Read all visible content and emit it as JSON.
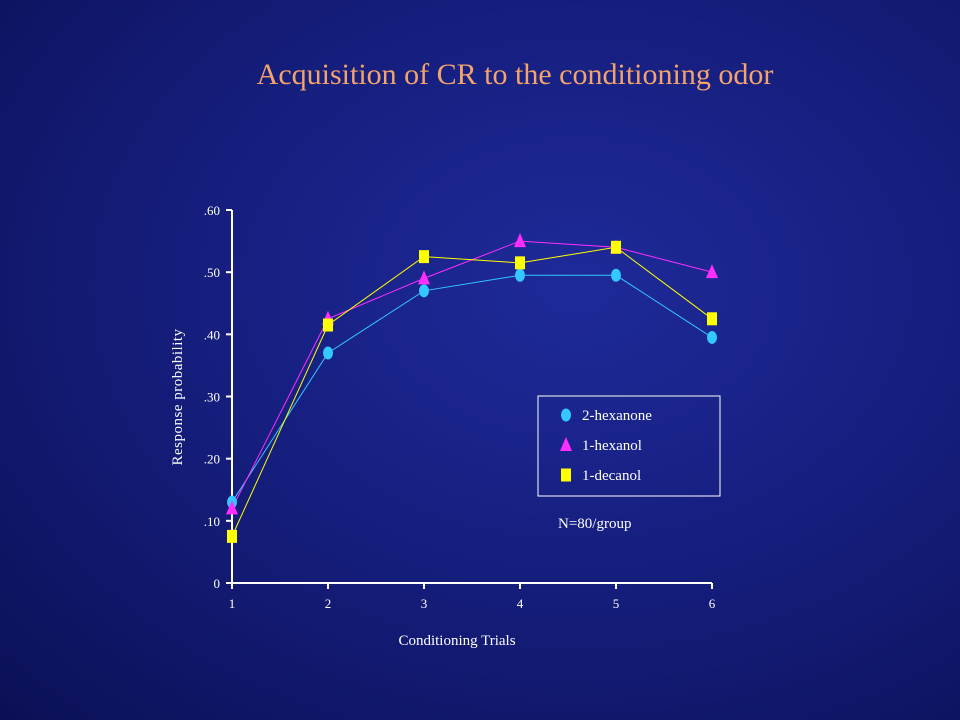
{
  "slide": {
    "title": "Acquisition of CR to the conditioning odor"
  },
  "colors": {
    "background": "#141c78",
    "title": "#f4a36a",
    "axis": "#ffffff",
    "series": [
      "#33c8ff",
      "#ff2eff",
      "#ffff00"
    ]
  },
  "chart_data": {
    "type": "line",
    "title": "Acquisition of CR to the conditioning odor",
    "xlabel": "Conditioning Trials",
    "ylabel": "Response probability",
    "x": [
      1,
      2,
      3,
      4,
      5,
      6
    ],
    "xticks": [
      "1",
      "2",
      "3",
      "4",
      "5",
      "6"
    ],
    "yticks": [
      {
        "value": 0,
        "label": "0"
      },
      {
        "value": 0.1,
        "label": ".10"
      },
      {
        "value": 0.2,
        "label": ".20"
      },
      {
        "value": 0.3,
        "label": ".30"
      },
      {
        "value": 0.4,
        "label": ".40"
      },
      {
        "value": 0.5,
        "label": ".50"
      },
      {
        "value": 0.6,
        "label": ".60"
      }
    ],
    "ylim": [
      0,
      0.6
    ],
    "grid": false,
    "legend_position": "right",
    "series": [
      {
        "name": "2-hexanone",
        "marker": "circle",
        "color": "#33c8ff",
        "values": [
          0.13,
          0.37,
          0.47,
          0.495,
          0.495,
          0.395
        ]
      },
      {
        "name": "1-hexanol",
        "marker": "triangle",
        "color": "#ff2eff",
        "values": [
          0.12,
          0.425,
          0.49,
          0.55,
          0.54,
          0.5
        ]
      },
      {
        "name": "1-decanol",
        "marker": "square",
        "color": "#ffff00",
        "values": [
          0.075,
          0.415,
          0.525,
          0.515,
          0.54,
          0.425
        ]
      }
    ],
    "annotation": "N=80/group"
  }
}
